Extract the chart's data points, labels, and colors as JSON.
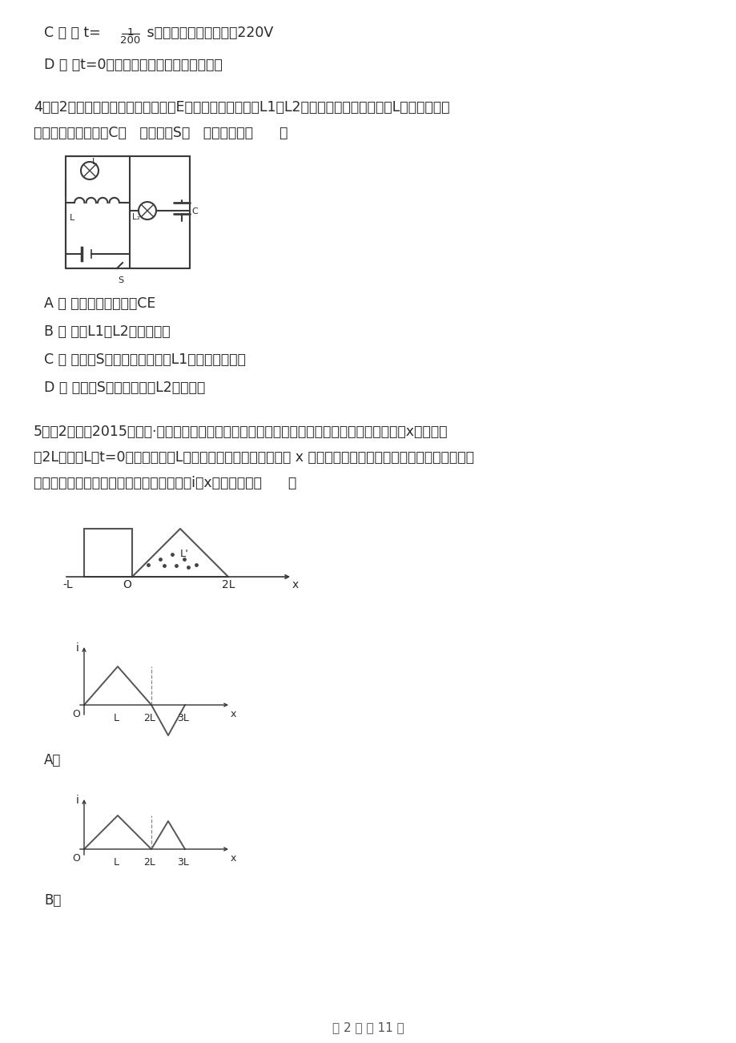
{
  "bg_color": "#ffffff",
  "text_color": "#2a2a2a",
  "page_width": 9.2,
  "page_height": 13.02,
  "dpi": 100,
  "line_C_pre": "C ． 当 t=",
  "frac_num": "1",
  "frac_den": "200",
  "line_C_post": " s时，电动势的瞬时値为220V",
  "line_D": "D ． 当t=0时，线圈平面恰好与中性面垂直",
  "q4_line1": "4．（2分）如图所示，电源电动势为E，其内阻不可忽略，L1、L2是完全相同的灯泡，线圈L的直流电阻不",
  "q4_line2": "计，电容器的电容为C．   合上开关S，   电路稳定后（      ）",
  "optA": "A ． 电容器的带电量为CE",
  "optB": "B ． 灯泡L1、L2的亮度相同",
  "optC": "C ． 在断开S的瞬间，通过灯泡L1的电流方向向右",
  "optD": "D ． 在断开S的瞬间，灯泡L2立即息灯",
  "q5_line1": "5．（2分）（2015高二下·会宁期中）等腰三角形内有垂直于纸面向外的匀强磁场，它的底边在x轴上且长",
  "q5_line2": "为2L，高为L，t=0时刻，边长为L的正方形导线框从图示位置沿 x 轴匀速穿过磁场，取顺时针方向为电流的正方",
  "q5_line3": "向，则能够正确表示导线框中电流－位移（i－x）关系的是（      ）",
  "footer": "第 2 页 共 11 页"
}
